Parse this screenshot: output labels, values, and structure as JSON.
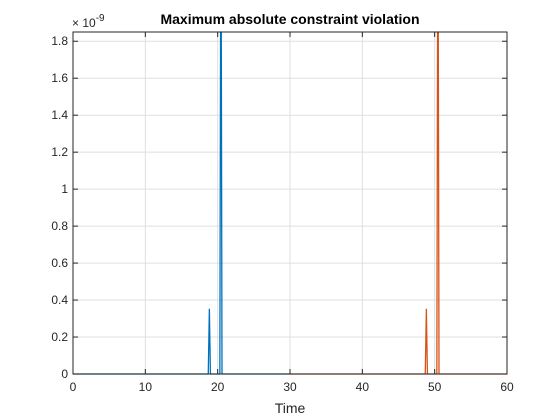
{
  "chart_data": {
    "type": "line",
    "title": "Maximum absolute constraint violation",
    "xlabel": "Time",
    "ylabel": "",
    "xlim": [
      0,
      60
    ],
    "ylim": [
      0,
      1.85
    ],
    "y_exponent_label": "× 10",
    "y_exponent_power": "-9",
    "x_ticks": [
      0,
      10,
      20,
      30,
      40,
      50,
      60
    ],
    "x_tick_labels": [
      "0",
      "10",
      "20",
      "30",
      "40",
      "50",
      "60"
    ],
    "y_ticks": [
      0,
      0.2,
      0.4,
      0.6,
      0.8,
      1,
      1.2,
      1.4,
      1.6,
      1.8
    ],
    "y_tick_labels": [
      "0",
      "0.2",
      "0.4",
      "0.6",
      "0.8",
      "1",
      "1.2",
      "1.4",
      "1.6",
      "1.8"
    ],
    "grid": true,
    "series": [
      {
        "color": "#0072BD",
        "x": [
          0,
          18.7,
          18.85,
          19.0,
          20.2,
          20.3,
          20.4,
          20.5,
          20.6,
          30
        ],
        "y": [
          0,
          0,
          0.35,
          0,
          0,
          0,
          1.85,
          1.85,
          0,
          0
        ]
      },
      {
        "color": "#D95319",
        "x": [
          30,
          48.7,
          48.85,
          49.0,
          50.2,
          50.3,
          50.4,
          50.5,
          50.6,
          60
        ],
        "y": [
          0,
          0,
          0.35,
          0,
          0,
          0,
          1.85,
          1.85,
          0,
          0
        ]
      }
    ]
  }
}
